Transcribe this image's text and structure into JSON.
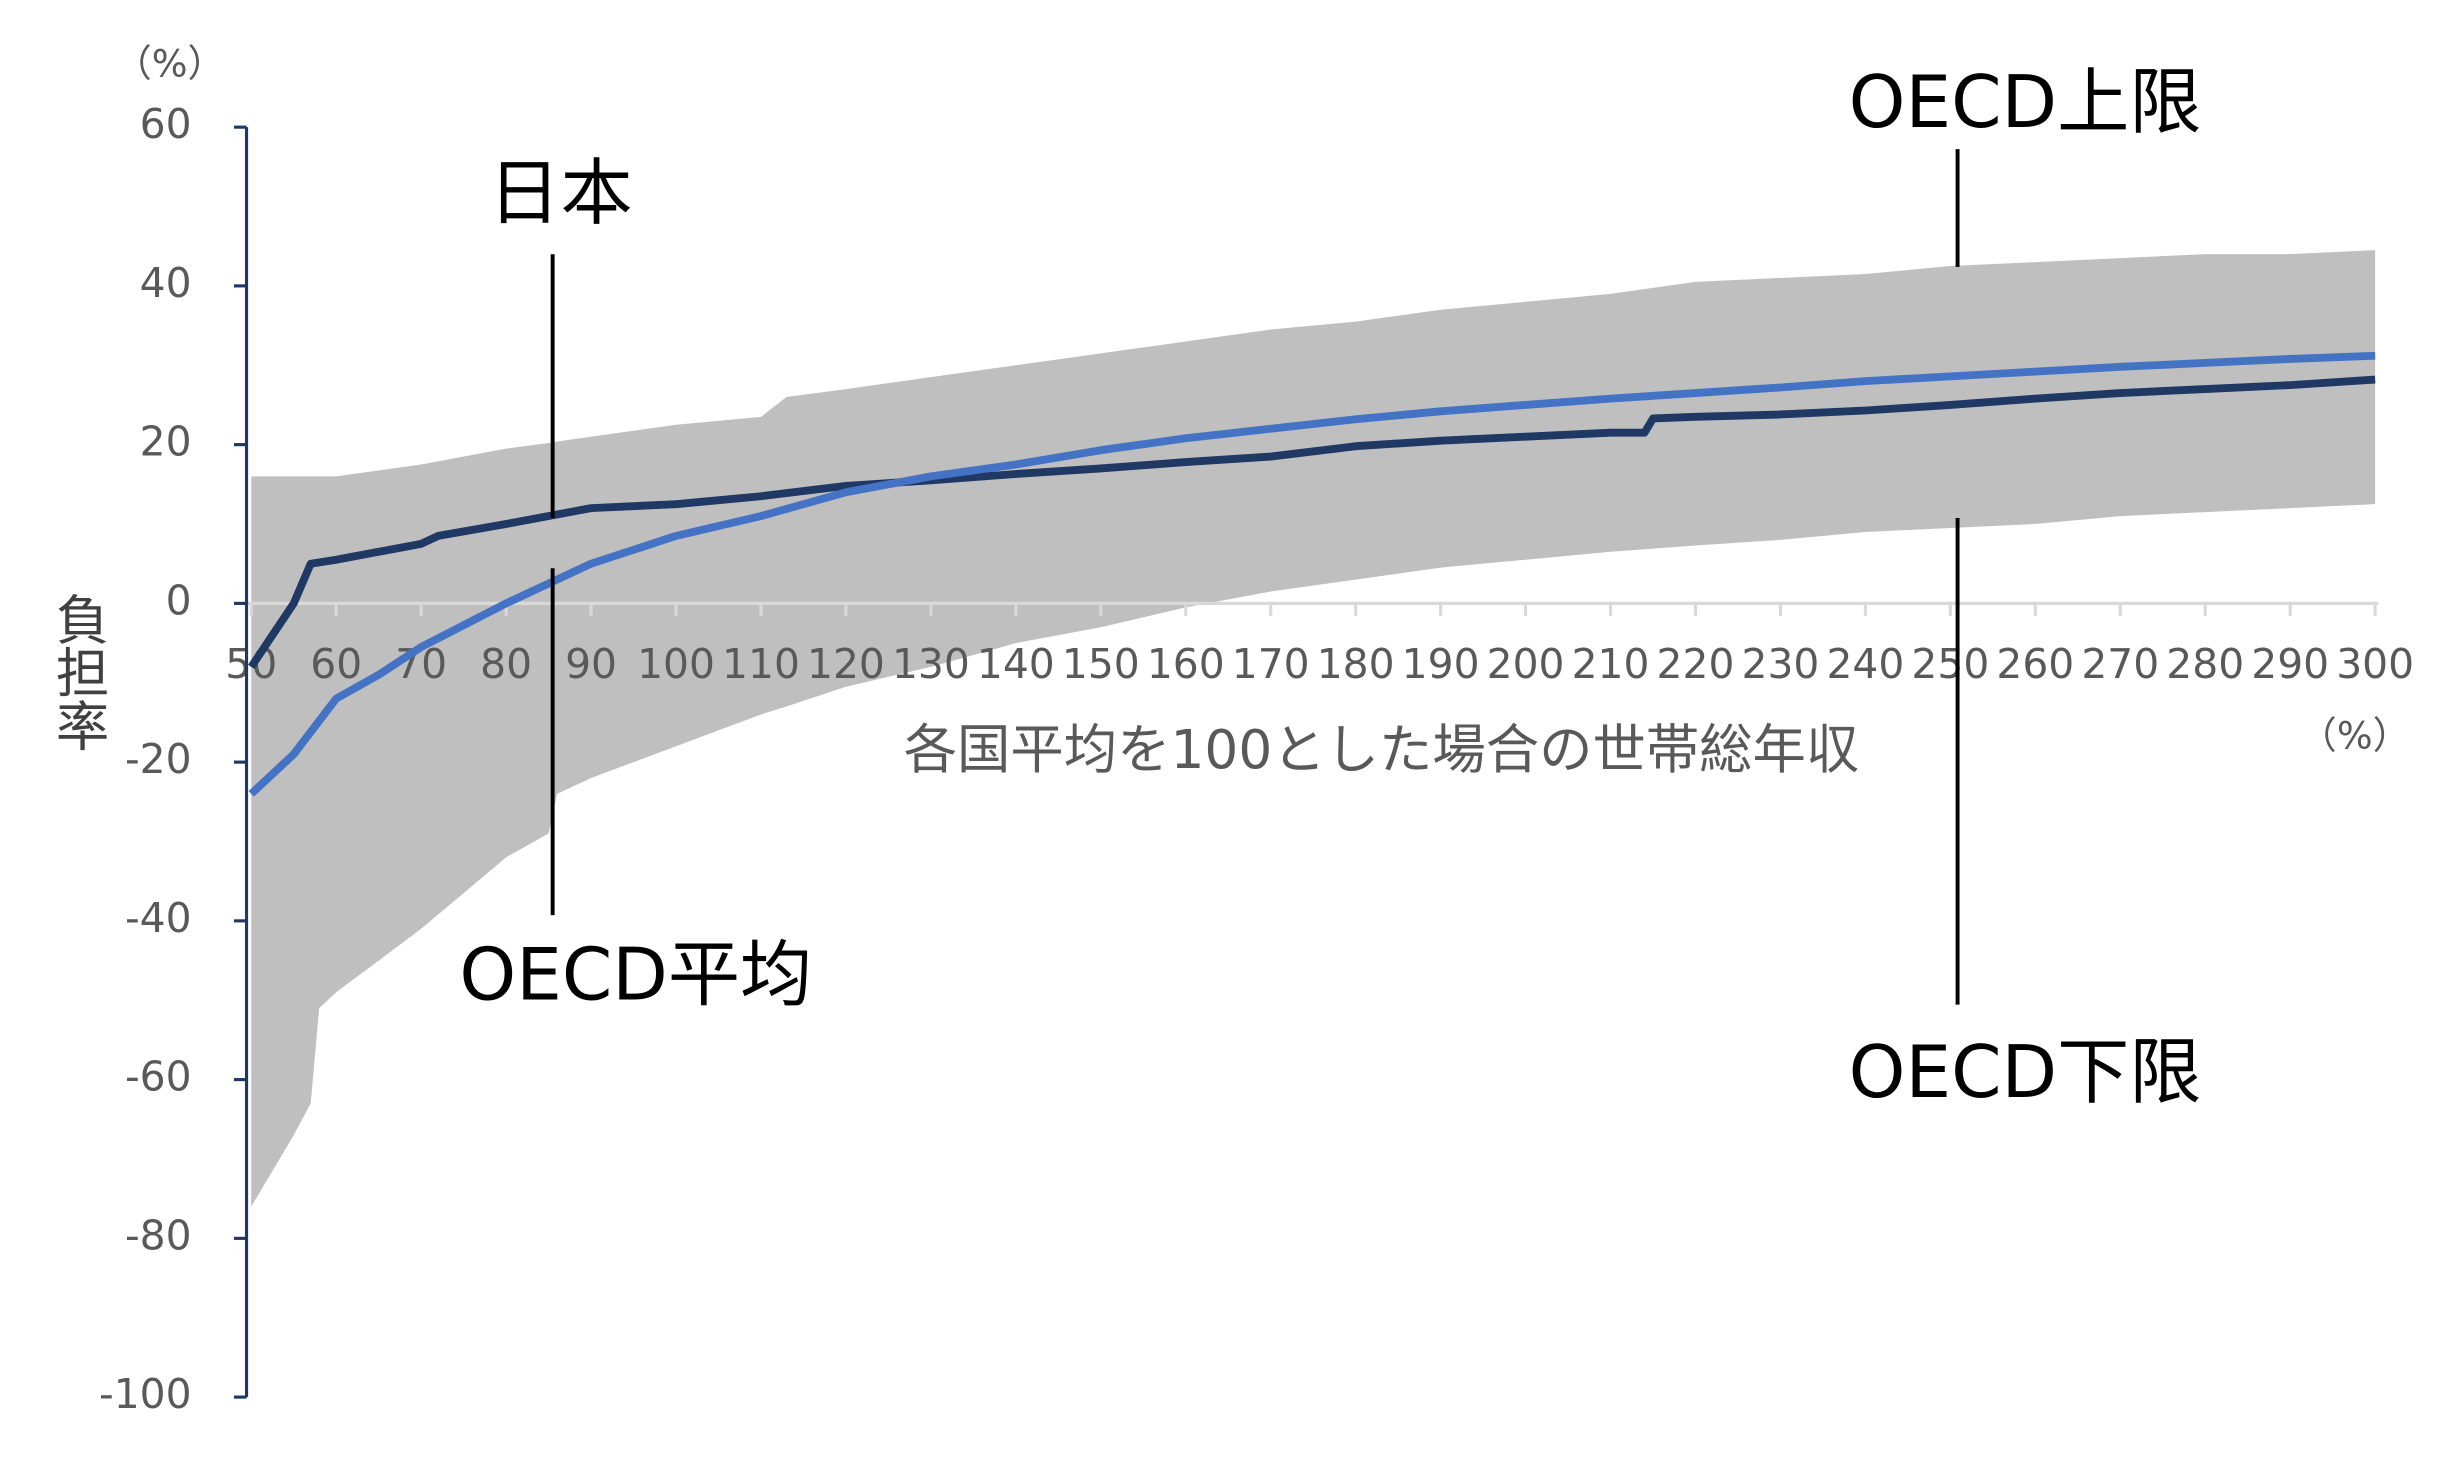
{
  "chart_data": {
    "type": "line",
    "y_label": "負担率",
    "y_unit": "（%）",
    "x_label": "各国平均を100とした場合の世帯総年収",
    "x_unit": "（%）",
    "xlim": [
      50,
      300
    ],
    "xticks": [
      50,
      60,
      70,
      80,
      90,
      100,
      110,
      120,
      130,
      140,
      150,
      160,
      170,
      180,
      190,
      200,
      210,
      220,
      230,
      240,
      250,
      260,
      270,
      280,
      290,
      300
    ],
    "ylim": [
      -100,
      60
    ],
    "yticks": [
      -100,
      -80,
      -60,
      -40,
      -20,
      0,
      20,
      40,
      60
    ],
    "band": {
      "color": "#bfbfbf",
      "x": [
        50,
        55,
        57,
        58,
        60,
        70,
        80,
        85,
        86,
        90,
        100,
        110,
        113,
        120,
        130,
        140,
        150,
        160,
        170,
        180,
        190,
        200,
        210,
        220,
        230,
        240,
        250,
        260,
        270,
        280,
        290,
        300
      ],
      "upper": [
        16,
        16,
        16,
        16,
        16,
        17.5,
        19.5,
        20.2,
        20.4,
        21,
        22.5,
        23.5,
        26,
        27,
        28.5,
        30,
        31.5,
        33,
        34.5,
        35.5,
        37,
        38,
        39,
        40.5,
        41,
        41.5,
        42.5,
        43,
        43.5,
        44,
        44,
        44.5
      ],
      "lower": [
        -76,
        -67,
        -63,
        -51,
        -49,
        -41,
        -32,
        -29,
        -24,
        -22,
        -18,
        -14,
        -13,
        -10.5,
        -8,
        -5,
        -3,
        -0.5,
        1.5,
        3,
        4.5,
        5.5,
        6.5,
        7.3,
        8,
        9,
        9.5,
        10,
        11,
        11.5,
        12,
        12.5
      ]
    },
    "series": [
      {
        "name": "日本",
        "color": "#1f3864",
        "x": [
          50,
          55,
          57,
          60,
          65,
          70,
          72,
          80,
          90,
          100,
          110,
          120,
          130,
          140,
          150,
          160,
          170,
          180,
          190,
          200,
          210,
          214,
          215,
          220,
          230,
          240,
          250,
          260,
          270,
          280,
          290,
          300
        ],
        "values": [
          -8,
          0,
          5,
          5.5,
          6.5,
          7.5,
          8.5,
          10,
          12,
          12.5,
          13.5,
          14.8,
          15.5,
          16.3,
          17,
          17.8,
          18.5,
          19.8,
          20.5,
          21,
          21.5,
          21.5,
          23.3,
          23.5,
          23.8,
          24.3,
          25,
          25.8,
          26.5,
          27,
          27.5,
          28.2
        ]
      },
      {
        "name": "OECD平均",
        "color": "#4472c4",
        "x": [
          50,
          55,
          60,
          65,
          70,
          80,
          90,
          100,
          110,
          120,
          130,
          140,
          150,
          160,
          170,
          180,
          190,
          200,
          210,
          220,
          230,
          240,
          250,
          260,
          270,
          280,
          290,
          300
        ],
        "values": [
          -24,
          -19,
          -12,
          -9,
          -5.5,
          0,
          5,
          8.5,
          11,
          14,
          16,
          17.5,
          19.3,
          20.8,
          22,
          23.2,
          24.2,
          25,
          25.8,
          26.5,
          27.2,
          28,
          28.6,
          29.2,
          29.8,
          30.3,
          30.8,
          31.2
        ]
      }
    ],
    "annotations": [
      "日本",
      "OECD平均",
      "OECD上限",
      "OECD下限"
    ]
  }
}
